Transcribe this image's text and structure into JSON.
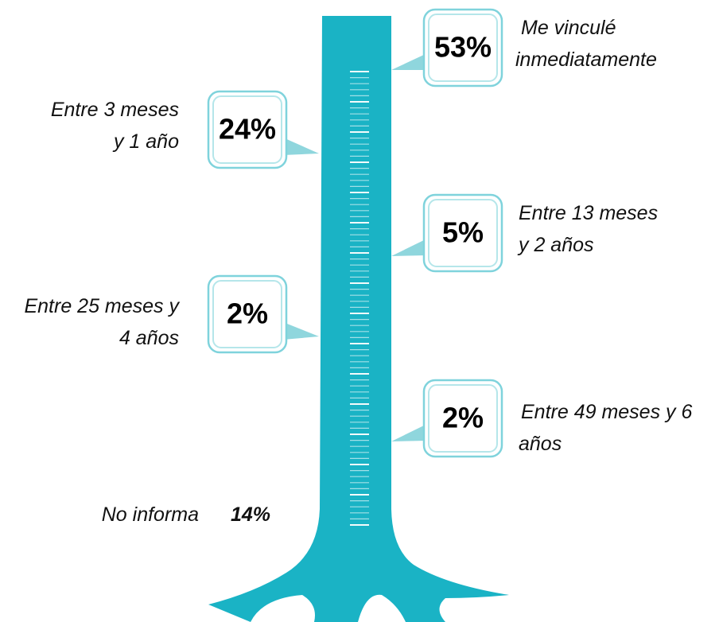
{
  "items": [
    {
      "value": "53%",
      "label": [
        "Me vinculé",
        "inmediatamente"
      ]
    },
    {
      "value": "24%",
      "label": [
        "Entre 3 meses",
        "y 1 año"
      ]
    },
    {
      "value": "5%",
      "label": [
        "Entre 13 meses",
        "y 2 años"
      ]
    },
    {
      "value": "2%",
      "label": [
        "Entre 25 meses y",
        "4 años"
      ]
    },
    {
      "value": "2%",
      "label": [
        "Entre 49 meses y 6",
        "años"
      ]
    }
  ],
  "footer": {
    "label": "No informa",
    "value": "14%"
  }
}
